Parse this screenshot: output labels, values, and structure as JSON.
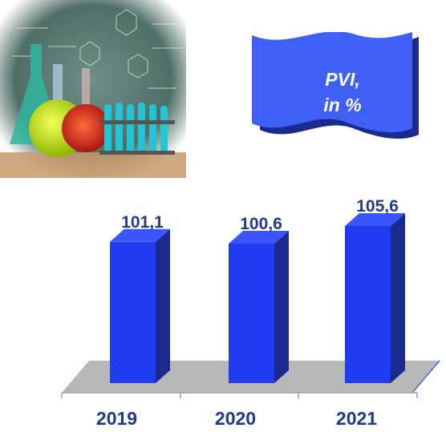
{
  "chart_data": {
    "type": "bar",
    "categories": [
      "2019",
      "2020",
      "2021"
    ],
    "values": [
      101.1,
      100.6,
      105.6
    ],
    "value_labels": [
      "101,1",
      "100,6",
      "105,6"
    ],
    "title": "PVI, in %",
    "title_lines": [
      "PVI,",
      "in %"
    ],
    "style": "3d",
    "colors": {
      "bar_front": "#1f3cf0",
      "bar_side": "#1a2a8f",
      "bar_top": "#3a55ff",
      "label": "#1f3a8a",
      "floor": "#b8b8b8"
    }
  },
  "illustration": {
    "name": "chemistry-flasks-photo"
  }
}
